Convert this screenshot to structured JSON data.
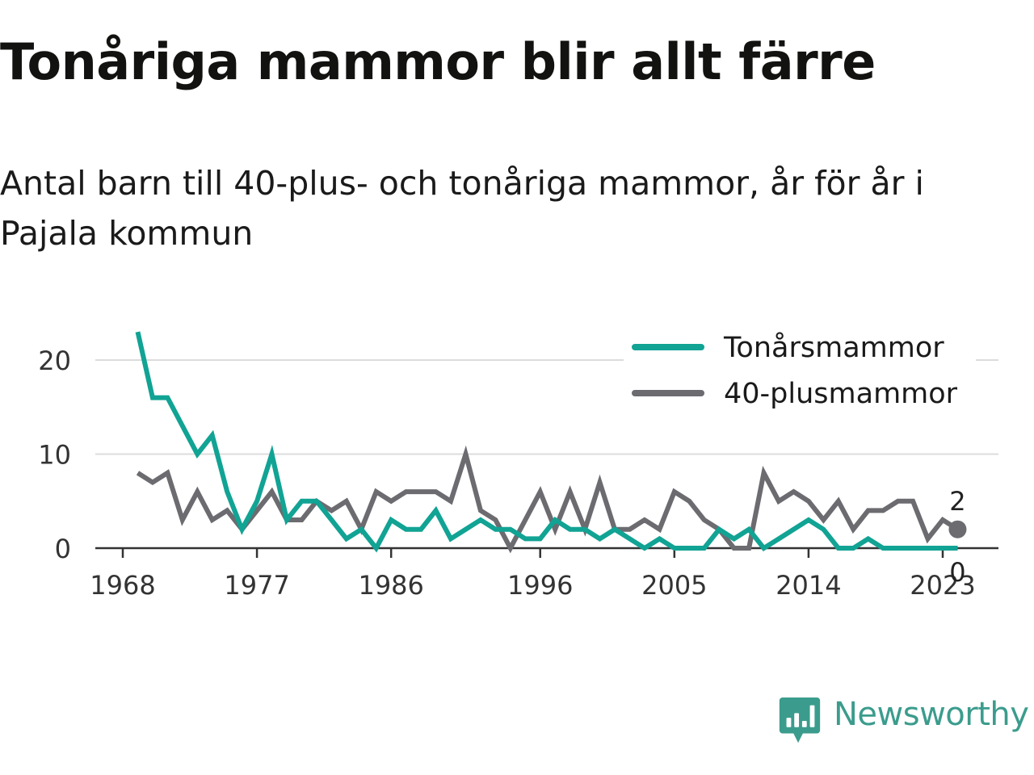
{
  "header": {
    "title": "Tonåriga mammor blir allt färre",
    "subtitle": "Antal barn till 40-plus- och tonåriga mammor, år för år i Pajala kommun"
  },
  "brand": {
    "name": "Newsworthy",
    "icon": "newsworthy-logo-icon",
    "color": "#3b9c8d"
  },
  "chart_data": {
    "type": "line",
    "title": "Tonåriga mammor blir allt färre",
    "subtitle": "Antal barn till 40-plus- och tonåriga mammor, år för år i Pajala kommun",
    "xlabel": "",
    "ylabel": "",
    "xlim": [
      1968,
      2025
    ],
    "ylim": [
      0,
      24
    ],
    "x_ticks": [
      "1968",
      "1977",
      "1986",
      "1996",
      "2005",
      "2014",
      "2023"
    ],
    "y_ticks": [
      "0",
      "10",
      "20"
    ],
    "grid": "horizontal",
    "legend_position": "top-right",
    "x": [
      1969,
      1970,
      1971,
      1972,
      1973,
      1974,
      1975,
      1976,
      1977,
      1978,
      1979,
      1980,
      1981,
      1982,
      1983,
      1984,
      1985,
      1986,
      1987,
      1988,
      1989,
      1990,
      1991,
      1992,
      1993,
      1994,
      1995,
      1996,
      1997,
      1998,
      1999,
      2000,
      2001,
      2002,
      2003,
      2004,
      2005,
      2006,
      2007,
      2008,
      2009,
      2010,
      2011,
      2012,
      2013,
      2014,
      2015,
      2016,
      2017,
      2018,
      2019,
      2020,
      2021,
      2022,
      2023,
      2024
    ],
    "series": [
      {
        "name": "Tonårsmammor",
        "color": "#11a394",
        "values": [
          23,
          16,
          16,
          13,
          10,
          12,
          6,
          2,
          5,
          10,
          3,
          5,
          5,
          3,
          1,
          2,
          0,
          3,
          2,
          2,
          4,
          1,
          2,
          3,
          2,
          2,
          1,
          1,
          3,
          2,
          2,
          1,
          2,
          1,
          0,
          1,
          0,
          0,
          0,
          2,
          1,
          2,
          0,
          1,
          2,
          3,
          2,
          0,
          0,
          1,
          0,
          0,
          0,
          0,
          0,
          0
        ]
      },
      {
        "name": "40-plusmammor",
        "color": "#6b6b70",
        "values": [
          8,
          7,
          8,
          3,
          6,
          3,
          4,
          2,
          4,
          6,
          3,
          3,
          5,
          4,
          5,
          2,
          6,
          5,
          6,
          6,
          6,
          5,
          10,
          4,
          3,
          0,
          3,
          6,
          2,
          6,
          2,
          7,
          2,
          2,
          3,
          2,
          6,
          5,
          3,
          2,
          0,
          0,
          8,
          5,
          6,
          5,
          3,
          5,
          2,
          4,
          4,
          5,
          5,
          1,
          3,
          2
        ]
      }
    ],
    "end_labels": [
      {
        "series": "40-plusmammor",
        "x": 2024,
        "value": 2,
        "text": "2"
      },
      {
        "series": "Tonårsmammor",
        "x": 2024,
        "value": 0,
        "text": "0"
      }
    ]
  }
}
